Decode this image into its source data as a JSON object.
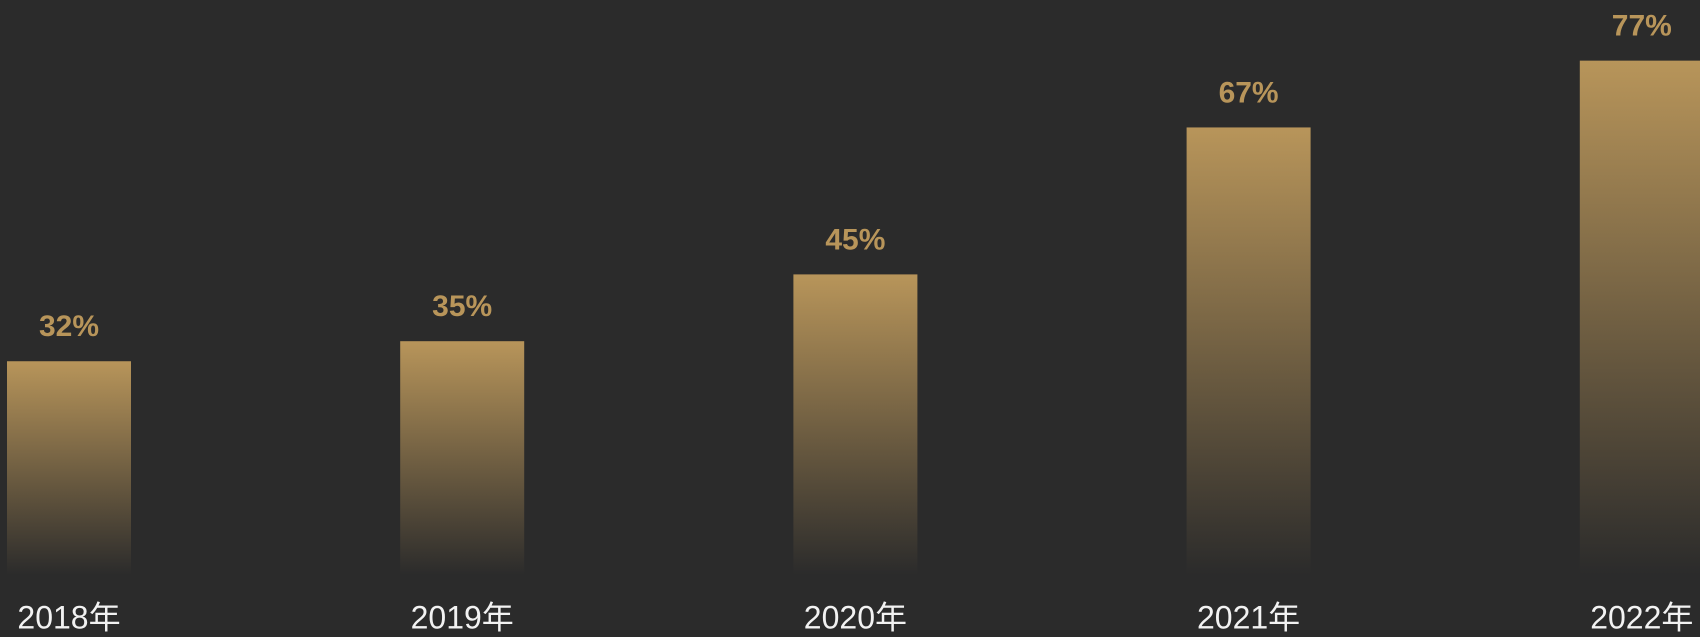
{
  "chart_data": {
    "type": "bar",
    "categories": [
      "2018年",
      "2019年",
      "2020年",
      "2021年",
      "2022年"
    ],
    "values": [
      32,
      35,
      45,
      67,
      77
    ],
    "value_labels": [
      "32%",
      "35%",
      "45%",
      "67%",
      "77%"
    ],
    "color": "#b8955a"
  }
}
